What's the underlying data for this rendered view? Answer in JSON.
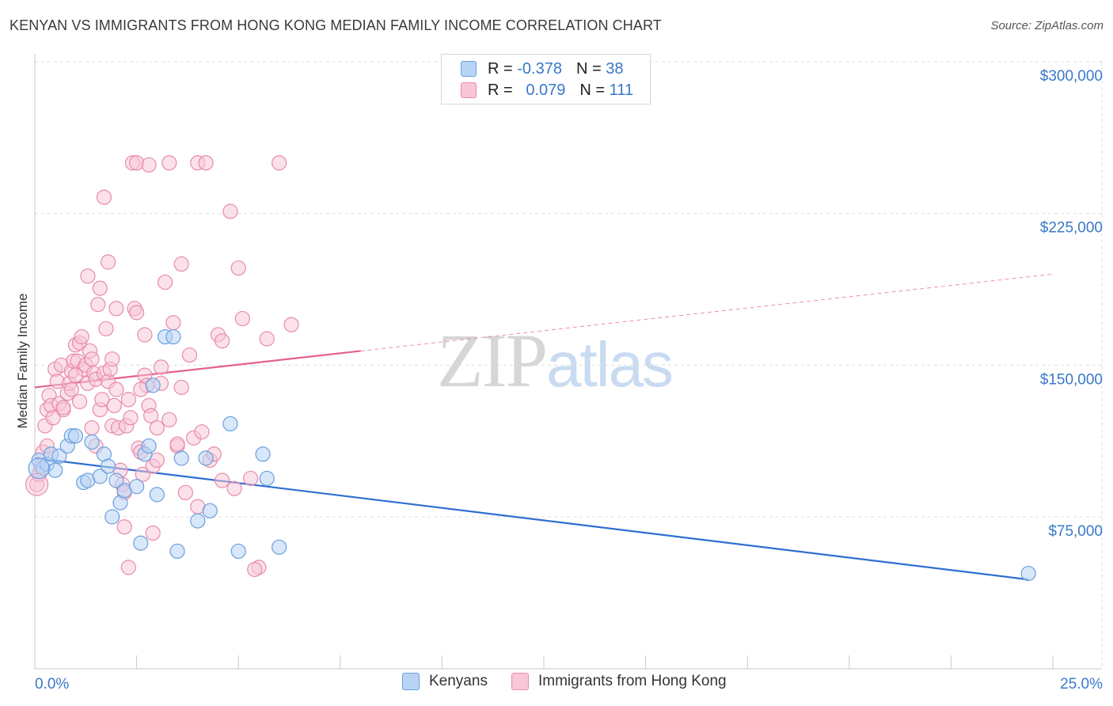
{
  "title": "KENYAN VS IMMIGRANTS FROM HONG KONG MEDIAN FAMILY INCOME CORRELATION CHART",
  "source": "Source: ZipAtlas.com",
  "watermark": {
    "zip": "ZIP",
    "atlas": "atlas"
  },
  "legend": {
    "kenyans": {
      "r_label": "R =",
      "r_value": "-0.378",
      "n_label": "N =",
      "n_value": "38"
    },
    "hongkong": {
      "r_label": "R =",
      "r_value": "0.079",
      "n_label": "N =",
      "n_value": "111"
    }
  },
  "colors": {
    "kenyans_fill": "#b8d4f4",
    "kenyans_stroke": "#6a9fdd",
    "kenyans_line": "#2f6fd0",
    "hongkong_fill": "#f8c6d6",
    "hongkong_stroke": "#e88aaa",
    "hongkong_line": "#e5608c",
    "axis_label": "#3a78c9",
    "grid": "#dddddd"
  },
  "chart_data": {
    "type": "scatter",
    "title": "KENYAN VS IMMIGRANTS FROM HONG KONG MEDIAN FAMILY INCOME CORRELATION CHART",
    "xlabel": "",
    "ylabel": "Median Family Income",
    "xlim": [
      0,
      25
    ],
    "ylim": [
      25000,
      320000
    ],
    "x_tick_labels": [
      "0.0%",
      "25.0%"
    ],
    "y_ticks": [
      75000,
      150000,
      225000,
      300000
    ],
    "y_tick_labels": [
      "$75,000",
      "$150,000",
      "$225,000",
      "$300,000"
    ],
    "grid": true,
    "legend_position": "top-center",
    "series": [
      {
        "name": "Kenyans",
        "points": [
          [
            0.1,
            103000
          ],
          [
            0.2,
            99000
          ],
          [
            0.3,
            101000
          ],
          [
            0.4,
            106000
          ],
          [
            0.5,
            98000
          ],
          [
            0.6,
            105000
          ],
          [
            0.8,
            110000
          ],
          [
            0.9,
            115000
          ],
          [
            1.0,
            115000
          ],
          [
            1.2,
            92000
          ],
          [
            1.3,
            93000
          ],
          [
            1.4,
            112000
          ],
          [
            1.6,
            95000
          ],
          [
            1.7,
            106000
          ],
          [
            1.8,
            100000
          ],
          [
            1.9,
            75000
          ],
          [
            2.0,
            93000
          ],
          [
            2.1,
            82000
          ],
          [
            2.2,
            88000
          ],
          [
            2.5,
            90000
          ],
          [
            2.6,
            62000
          ],
          [
            2.7,
            106000
          ],
          [
            2.8,
            110000
          ],
          [
            2.9,
            140000
          ],
          [
            3.0,
            86000
          ],
          [
            3.2,
            164000
          ],
          [
            3.4,
            164000
          ],
          [
            3.5,
            58000
          ],
          [
            3.6,
            104000
          ],
          [
            4.0,
            73000
          ],
          [
            4.2,
            104000
          ],
          [
            4.3,
            78000
          ],
          [
            4.8,
            121000
          ],
          [
            5.0,
            58000
          ],
          [
            5.6,
            106000
          ],
          [
            5.7,
            94000
          ],
          [
            6.0,
            60000
          ],
          [
            24.4,
            47000
          ]
        ],
        "trend": {
          "x": [
            0,
            24.4
          ],
          "y": [
            104000,
            44000
          ]
        }
      },
      {
        "name": "Immigrants from Hong Kong",
        "points": [
          [
            0.05,
            91000
          ],
          [
            0.1,
            96000
          ],
          [
            0.15,
            100000
          ],
          [
            0.2,
            107000
          ],
          [
            0.25,
            120000
          ],
          [
            0.3,
            128000
          ],
          [
            0.35,
            135000
          ],
          [
            0.4,
            130000
          ],
          [
            0.5,
            148000
          ],
          [
            0.55,
            142000
          ],
          [
            0.6,
            131000
          ],
          [
            0.65,
            150000
          ],
          [
            0.7,
            128000
          ],
          [
            0.8,
            136000
          ],
          [
            0.85,
            141000
          ],
          [
            0.9,
            147000
          ],
          [
            0.95,
            152000
          ],
          [
            1.0,
            160000
          ],
          [
            1.05,
            152000
          ],
          [
            1.1,
            161000
          ],
          [
            1.15,
            164000
          ],
          [
            1.2,
            148000
          ],
          [
            1.25,
            150000
          ],
          [
            1.3,
            141000
          ],
          [
            1.35,
            157000
          ],
          [
            1.4,
            153000
          ],
          [
            1.45,
            146000
          ],
          [
            1.5,
            143000
          ],
          [
            1.55,
            180000
          ],
          [
            1.6,
            128000
          ],
          [
            1.65,
            133000
          ],
          [
            1.7,
            146000
          ],
          [
            1.75,
            168000
          ],
          [
            1.8,
            142000
          ],
          [
            1.85,
            148000
          ],
          [
            1.9,
            120000
          ],
          [
            1.95,
            130000
          ],
          [
            2.0,
            138000
          ],
          [
            2.05,
            119000
          ],
          [
            2.1,
            98000
          ],
          [
            2.15,
            91000
          ],
          [
            2.2,
            87000
          ],
          [
            2.25,
            120000
          ],
          [
            2.3,
            133000
          ],
          [
            2.35,
            124000
          ],
          [
            2.4,
            250000
          ],
          [
            2.45,
            178000
          ],
          [
            2.5,
            176000
          ],
          [
            2.55,
            109000
          ],
          [
            2.6,
            107000
          ],
          [
            2.65,
            96000
          ],
          [
            2.7,
            145000
          ],
          [
            2.75,
            140000
          ],
          [
            2.8,
            130000
          ],
          [
            2.85,
            125000
          ],
          [
            2.9,
            100000
          ],
          [
            3.0,
            119000
          ],
          [
            3.1,
            149000
          ],
          [
            3.2,
            191000
          ],
          [
            3.3,
            123000
          ],
          [
            3.4,
            171000
          ],
          [
            3.5,
            110000
          ],
          [
            3.6,
            139000
          ],
          [
            3.7,
            87000
          ],
          [
            3.8,
            155000
          ],
          [
            3.9,
            114000
          ],
          [
            4.0,
            80000
          ],
          [
            4.1,
            117000
          ],
          [
            4.3,
            103000
          ],
          [
            4.5,
            165000
          ],
          [
            4.6,
            162000
          ],
          [
            4.8,
            226000
          ],
          [
            4.9,
            89000
          ],
          [
            5.0,
            198000
          ],
          [
            5.1,
            173000
          ],
          [
            5.3,
            94000
          ],
          [
            5.5,
            50000
          ],
          [
            5.7,
            163000
          ],
          [
            6.0,
            250000
          ],
          [
            6.3,
            170000
          ],
          [
            1.7,
            233000
          ],
          [
            1.8,
            201000
          ],
          [
            2.5,
            250000
          ],
          [
            2.8,
            249000
          ],
          [
            3.3,
            250000
          ],
          [
            3.6,
            200000
          ],
          [
            4.0,
            250000
          ],
          [
            4.2,
            250000
          ],
          [
            1.3,
            194000
          ],
          [
            1.6,
            188000
          ],
          [
            2.0,
            178000
          ],
          [
            2.7,
            165000
          ],
          [
            3.1,
            141000
          ],
          [
            4.4,
            106000
          ],
          [
            4.6,
            93000
          ],
          [
            0.3,
            110000
          ],
          [
            0.45,
            124000
          ],
          [
            0.9,
            138000
          ],
          [
            1.1,
            132000
          ],
          [
            1.4,
            119000
          ],
          [
            1.9,
            153000
          ],
          [
            2.2,
            70000
          ],
          [
            2.9,
            67000
          ],
          [
            2.3,
            50000
          ],
          [
            5.4,
            49000
          ],
          [
            1.5,
            110000
          ],
          [
            1.0,
            145000
          ],
          [
            0.7,
            129000
          ],
          [
            2.6,
            138000
          ],
          [
            3.5,
            111000
          ],
          [
            3.0,
            103000
          ]
        ],
        "trend": {
          "x": [
            0,
            8
          ],
          "y": [
            139000,
            157000
          ]
        },
        "trend_extension": {
          "x": [
            8,
            25
          ],
          "y": [
            157000,
            195000
          ]
        }
      }
    ]
  },
  "bottom_legend": {
    "kenyans": "Kenyans",
    "hongkong": "Immigrants from Hong Kong"
  }
}
